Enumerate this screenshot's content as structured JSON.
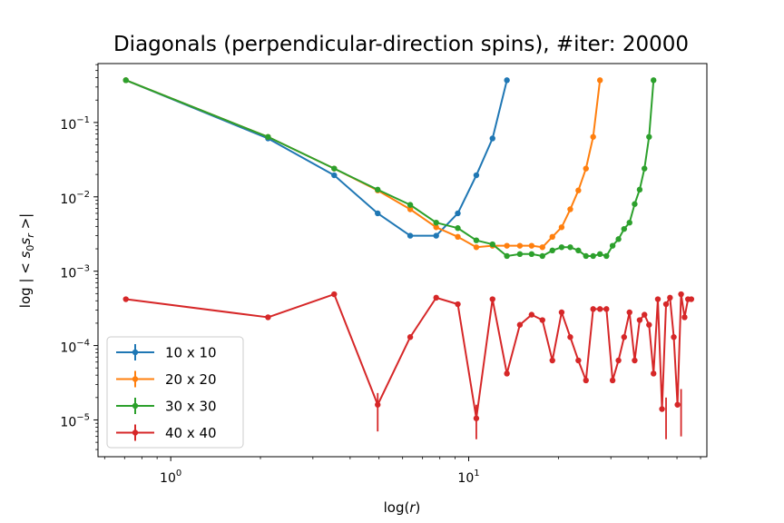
{
  "chart_data": {
    "type": "line",
    "title": "Diagonals (perpendicular-direction spins), #iter: 20000",
    "xlabel": "log(r)",
    "ylabel": "log | < s0sr >|",
    "x_scale": "log",
    "y_scale": "log",
    "xlim": [
      0.57,
      63
    ],
    "ylim": [
      3.2e-06,
      0.62
    ],
    "grid": false,
    "legend_position": "lower-left",
    "x_tick_labels": [
      "10^0",
      "10^1"
    ],
    "y_tick_labels": [
      "10^-5",
      "10^-4",
      "10^-3",
      "10^-2",
      "10^-1"
    ],
    "series": [
      {
        "name": "10 x 10",
        "color": "#1f77b4",
        "x": [
          0.707,
          2.121,
          3.536,
          4.95,
          6.364,
          7.778,
          9.192,
          10.607,
          12.021,
          13.435
        ],
        "y": [
          0.37,
          0.061,
          0.0195,
          0.006,
          0.003,
          0.003,
          0.006,
          0.0195,
          0.061,
          0.37
        ]
      },
      {
        "name": "20 x 20",
        "color": "#ff7f0e",
        "x": [
          0.707,
          2.121,
          3.536,
          4.95,
          6.364,
          7.778,
          9.192,
          10.607,
          12.021,
          13.435,
          14.849,
          16.263,
          17.678,
          19.092,
          20.506,
          21.92,
          23.335,
          24.749,
          26.163,
          27.577
        ],
        "y": [
          0.37,
          0.064,
          0.024,
          0.0122,
          0.0068,
          0.0039,
          0.0029,
          0.0021,
          0.0022,
          0.0022,
          0.0022,
          0.0022,
          0.0021,
          0.0029,
          0.0039,
          0.0068,
          0.0122,
          0.024,
          0.064,
          0.37
        ]
      },
      {
        "name": "30 x 30",
        "color": "#2ca02c",
        "x": [
          0.707,
          2.121,
          3.536,
          4.95,
          6.364,
          7.778,
          9.192,
          10.607,
          12.021,
          13.435,
          14.849,
          16.263,
          17.678,
          19.092,
          20.506,
          21.92,
          23.335,
          24.749,
          26.163,
          27.577,
          28.991,
          30.406,
          31.82,
          33.234,
          34.648,
          36.062,
          37.477,
          38.891,
          40.305,
          41.719
        ],
        "y": [
          0.37,
          0.064,
          0.024,
          0.0125,
          0.0078,
          0.0045,
          0.0038,
          0.0026,
          0.0023,
          0.0016,
          0.0017,
          0.0017,
          0.0016,
          0.0019,
          0.0021,
          0.0021,
          0.0019,
          0.0016,
          0.0016,
          0.0017,
          0.0016,
          0.0022,
          0.0027,
          0.0037,
          0.0045,
          0.008,
          0.0125,
          0.024,
          0.064,
          0.37
        ]
      },
      {
        "name": "40 x 40",
        "color": "#d62728",
        "x": [
          0.707,
          2.121,
          3.536,
          4.95,
          6.364,
          7.778,
          9.192,
          10.607,
          12.021,
          13.435,
          14.849,
          16.263,
          17.678,
          19.092,
          20.506,
          21.92,
          23.335,
          24.749,
          26.163,
          27.577,
          28.991,
          30.406,
          31.82,
          33.234,
          34.648,
          36.062,
          37.477,
          38.891,
          40.305,
          41.719,
          43.134,
          44.548,
          45.962,
          47.376,
          48.79,
          50.205,
          51.619,
          53.033,
          54.447,
          55.861
        ],
        "y": [
          0.00042,
          0.00024,
          0.00049,
          1.6e-05,
          0.00013,
          0.00044,
          0.00036,
          1.05e-05,
          0.00042,
          4.2e-05,
          0.00019,
          0.00026,
          0.00022,
          6.3e-05,
          0.00028,
          0.00013,
          6.3e-05,
          3.4e-05,
          0.00031,
          0.00031,
          0.00031,
          3.4e-05,
          6.3e-05,
          0.00013,
          0.00028,
          6.3e-05,
          0.00022,
          0.00026,
          0.00019,
          4.2e-05,
          0.00042,
          1.4e-05,
          0.00036,
          0.00044,
          0.00013,
          1.6e-05,
          0.00049,
          0.00024,
          0.00042,
          0.00042
        ],
        "errors": [
          {
            "x": 4.95,
            "y_low": 7e-06,
            "y_high": 2.3e-05
          },
          {
            "x": 10.607,
            "y_low": 5.5e-06,
            "y_high": 1.6e-05
          },
          {
            "x": 45.962,
            "y_low": 5.5e-06,
            "y_high": 2e-05
          },
          {
            "x": 51.619,
            "y_low": 6e-06,
            "y_high": 2.6e-05
          }
        ]
      }
    ]
  }
}
